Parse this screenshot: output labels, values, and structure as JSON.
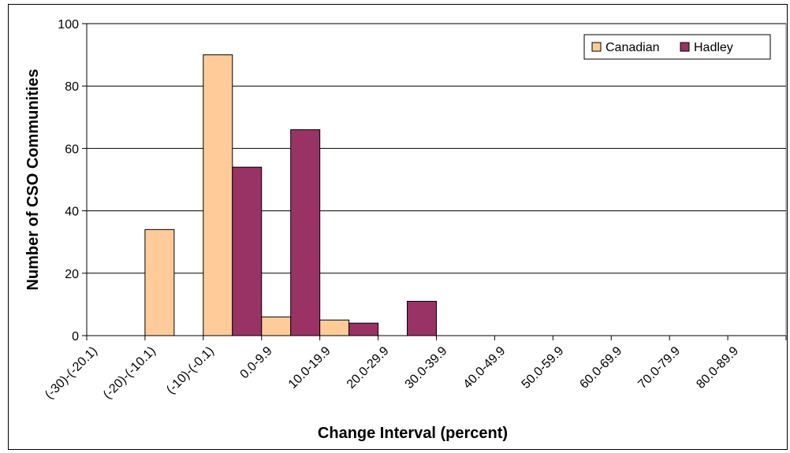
{
  "chart_data": {
    "type": "bar",
    "title": "",
    "xlabel": "Change Interval (percent)",
    "ylabel": "Number of CSO Communities",
    "ylim": [
      0,
      100
    ],
    "yticks": [
      0,
      20,
      40,
      60,
      80,
      100
    ],
    "grid": true,
    "legend_position": "top-right",
    "categories": [
      "(-30)-(-20.1)",
      "(-20)-(-10.1)",
      "(-10)-(-0.1)",
      "0.0-9.9",
      "10.0-19.9",
      "20.0-29.9",
      "30.0-39.9",
      "40.0-49.9",
      "50.0-59.9",
      "60.0-69.9",
      "70.0-79.9",
      "80.0-89.9"
    ],
    "series": [
      {
        "name": "Canadian",
        "color": "#FFCC99",
        "values": [
          0,
          34,
          90,
          6,
          5,
          0,
          0,
          0,
          0,
          0,
          0,
          0
        ]
      },
      {
        "name": "Hadley",
        "color": "#993366",
        "values": [
          0,
          0,
          54,
          66,
          4,
          11,
          0,
          0,
          0,
          0,
          0,
          0
        ]
      }
    ]
  }
}
